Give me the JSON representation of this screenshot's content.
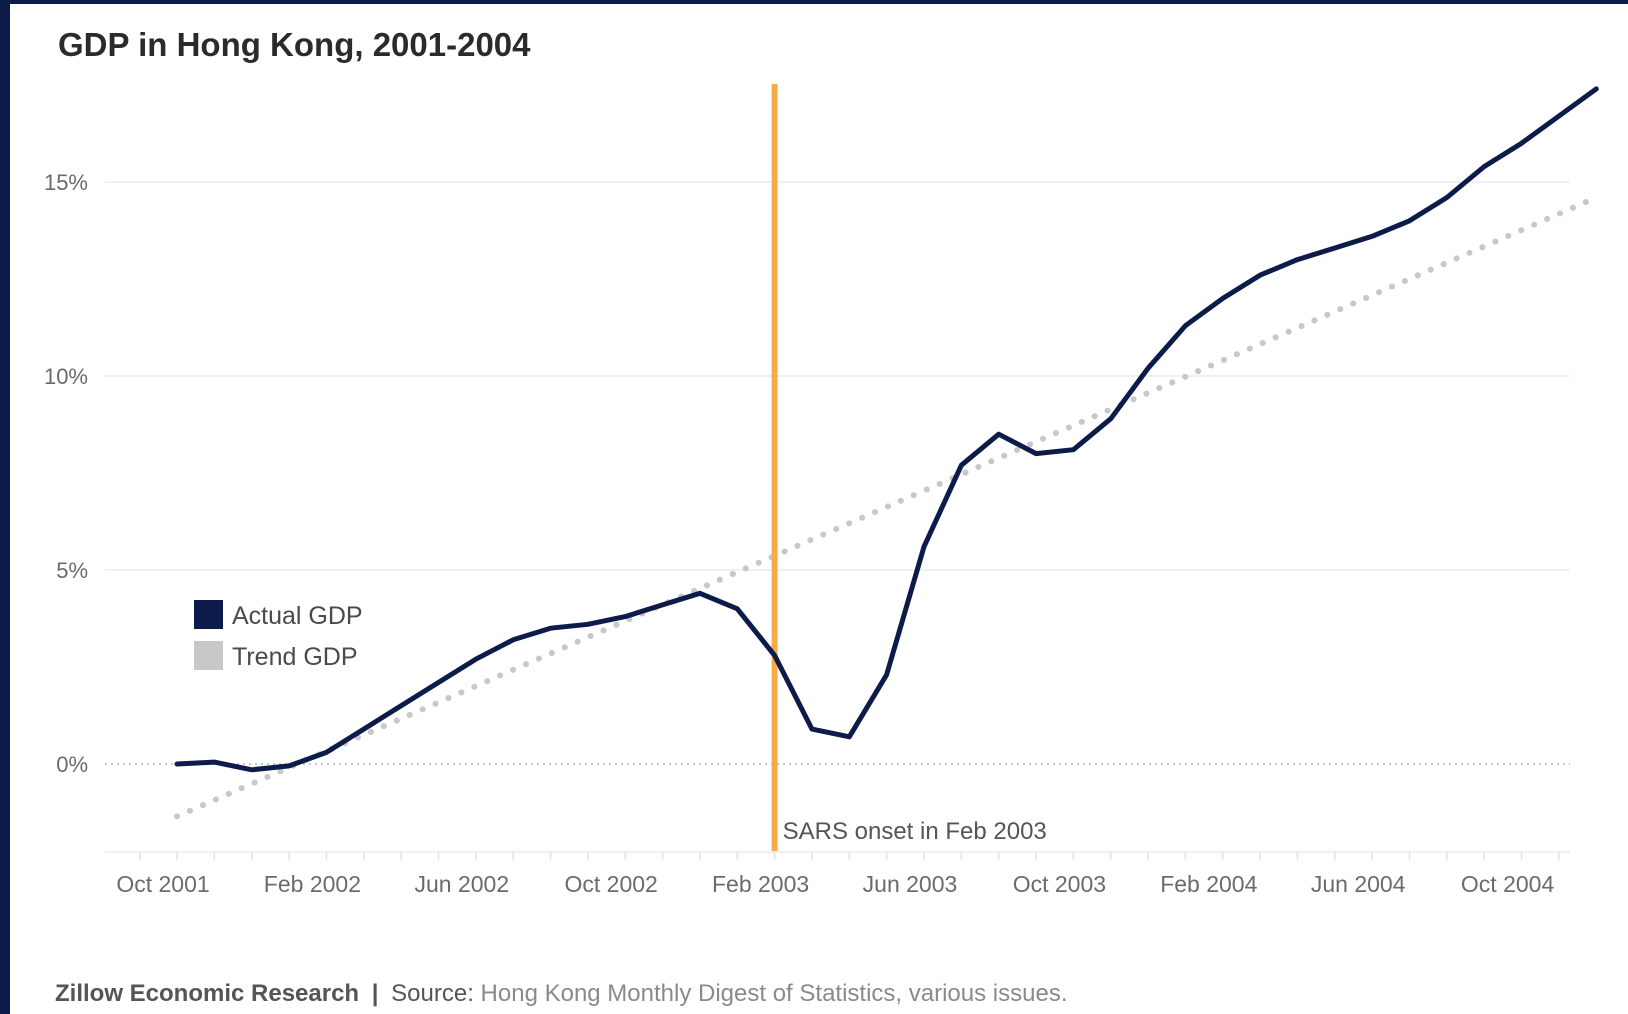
{
  "title": "GDP in Hong Kong, 2001-2004",
  "footer": {
    "brand": "Zillow Economic Research",
    "separator": "|",
    "source_label": "Source:",
    "source_text": "Hong Kong Monthly Digest of Statistics, various issues."
  },
  "colors": {
    "actual": "#0d1b4b",
    "trend": "#c8c8c8",
    "event": "#f6ab45",
    "grid": "#ececec",
    "axis_text": "#6b6b6b"
  },
  "chart_data": {
    "type": "line",
    "title": "GDP in Hong Kong, 2001-2004",
    "xlabel": "",
    "ylabel": "",
    "x_ticks": [
      "Oct 2001",
      "Feb 2002",
      "Jun 2002",
      "Oct 2002",
      "Feb 2003",
      "Jun 2003",
      "Oct 2003",
      "Feb 2004",
      "Jun 2004",
      "Oct 2004"
    ],
    "y_ticks": [
      "0%",
      "5%",
      "10%",
      "15%"
    ],
    "ylim": [
      -2.2,
      17.5
    ],
    "grid": true,
    "legend_position": "left, middle",
    "series": [
      {
        "name": "Actual GDP",
        "x": [
          "2001-10",
          "2001-11",
          "2001-12",
          "2002-01",
          "2002-02",
          "2002-03",
          "2002-04",
          "2002-05",
          "2002-06",
          "2002-07",
          "2002-08",
          "2002-09",
          "2002-10",
          "2002-11",
          "2002-12",
          "2003-01",
          "2003-02",
          "2003-03",
          "2003-04",
          "2003-05",
          "2003-06",
          "2003-07",
          "2003-08",
          "2003-09",
          "2003-10",
          "2003-11",
          "2003-12",
          "2004-01",
          "2004-02",
          "2004-03",
          "2004-04",
          "2004-05",
          "2004-06",
          "2004-07",
          "2004-08",
          "2004-09",
          "2004-10",
          "2004-11",
          "2004-12"
        ],
        "values": [
          0.0,
          0.05,
          -0.15,
          -0.05,
          0.3,
          0.9,
          1.5,
          2.1,
          2.7,
          3.2,
          3.5,
          3.6,
          3.8,
          4.1,
          4.4,
          4.0,
          2.8,
          0.9,
          0.7,
          2.3,
          5.6,
          7.7,
          8.5,
          8.0,
          8.1,
          8.9,
          10.2,
          11.3,
          12.0,
          12.6,
          13.0,
          13.3,
          13.6,
          14.0,
          14.6,
          15.4,
          16.0,
          16.7,
          17.4
        ]
      },
      {
        "name": "Trend GDP",
        "x": [
          "2001-10",
          "2004-12"
        ],
        "values": [
          -1.35,
          14.6
        ]
      }
    ],
    "annotations": [
      {
        "x": "2003-02",
        "text": "SARS onset in Feb 2003"
      }
    ]
  }
}
